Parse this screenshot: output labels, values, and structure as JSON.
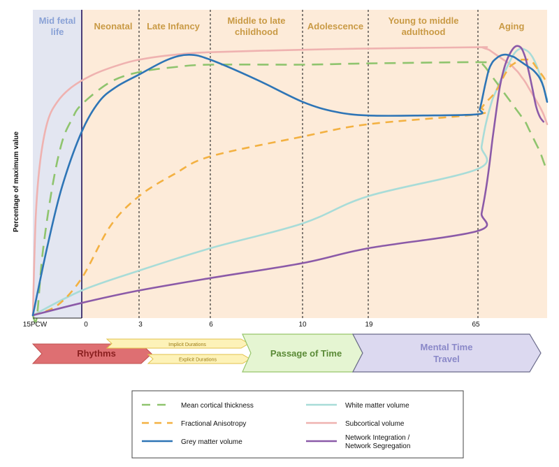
{
  "chart_data": {
    "type": "line",
    "title": "",
    "ylabel": "Percentage of maximum value",
    "xlabel": "",
    "x_ticks": [
      "15PCW",
      "0",
      "3",
      "6",
      "10",
      "19",
      "65"
    ],
    "stages": [
      "Mid fetal life",
      "Neonatal",
      "Late Infancy",
      "Middle to late childhood",
      "Adolescence",
      "Young to middle adulthood",
      "Aging"
    ],
    "stage_labels": {
      "mid_fetal": [
        "Mid fetal",
        "life"
      ],
      "neonatal": [
        "Neonatal"
      ],
      "late_infancy": [
        "Late Infancy"
      ],
      "childhood": [
        "Middle to late",
        "childhood"
      ],
      "adolescence": [
        "Adolescence"
      ],
      "adulthood": [
        "Young to middle",
        "adulthood"
      ],
      "aging": [
        "Aging"
      ]
    },
    "grid": false,
    "legend_position": "bottom",
    "series": [
      {
        "key": "thickness",
        "name": "Mean cortical thickness",
        "color": "#8fc46e",
        "dash": "long-dash",
        "x": [
          0,
          0.08,
          0.2,
          0.4,
          0.6,
          0.8,
          1.0,
          1.5,
          2.0,
          2.5,
          3.0,
          4.0,
          5.0,
          6.0,
          7.0,
          8.0,
          9.0,
          10.0,
          11.0,
          12.0,
          13.0,
          14.0,
          15.0,
          16.0,
          17.0,
          18.0,
          19.0,
          20.0,
          21.0,
          22.0,
          23.0,
          24.0,
          25.0
        ],
        "y": [
          0,
          -1,
          25,
          52,
          70,
          79,
          85,
          94,
          98,
          100,
          101,
          101,
          101.5,
          102,
          101.5,
          100,
          98,
          96,
          94,
          92,
          90,
          88,
          86,
          84,
          82,
          80,
          78,
          75,
          72,
          69,
          66,
          62,
          58
        ]
      },
      {
        "key": "fa",
        "name": "Fractional Anisotropy",
        "color": "#f3b142",
        "dash": "dash",
        "x": [
          0,
          0.5,
          1.0,
          1.5,
          2.0,
          2.5,
          3.0,
          4.0,
          5.0,
          6.0,
          7.0,
          8.0,
          9.0,
          10.0,
          11.0,
          12.0,
          13.0,
          14.0,
          15.0,
          16.0,
          17.0,
          18.0,
          19.0,
          20.0,
          21.0,
          22.0,
          23.0,
          24.0,
          25.0
        ],
        "y": [
          0,
          4,
          15,
          36,
          48,
          57,
          64,
          72,
          77,
          81,
          83.5,
          85.5,
          87,
          88.5,
          90.5,
          93,
          96,
          98.5,
          100.5,
          101.5,
          102.5,
          103,
          103,
          103,
          102,
          100,
          98,
          96,
          93.5
        ]
      },
      {
        "key": "grey",
        "name": "Grey matter volume",
        "color": "#2e75b6",
        "dash": "solid",
        "x": [
          0,
          0.3,
          0.6,
          1.0,
          1.3,
          1.6,
          2.0,
          2.4,
          2.7,
          3.0,
          3.5,
          4.0,
          4.5,
          5.0,
          5.5,
          6.0,
          6.5,
          7.0,
          8.0,
          9.0,
          10.0,
          11.0,
          12.0,
          13.0,
          14.0,
          15.0,
          16.0,
          17.0,
          18.0,
          19.0,
          20.0,
          21.0,
          22.0,
          23.0,
          24.0,
          25.0
        ],
        "y": [
          0,
          28,
          52,
          74,
          86,
          92,
          97,
          103,
          105,
          103,
          95,
          86,
          82,
          80.5,
          80.5,
          81,
          83,
          86,
          93,
          99,
          102,
          103.5,
          104.5,
          105,
          105,
          104.5,
          104,
          103,
          102,
          101,
          100,
          99,
          97.5,
          95.5,
          92,
          86
        ]
      },
      {
        "key": "white",
        "name": "White matter volume",
        "color": "#a8dcd8",
        "dash": "solid",
        "x": [
          0,
          1.0,
          2.0,
          3.0,
          4.0,
          5.0,
          6.0,
          7.0,
          8.0,
          9.0,
          10.0,
          11.0,
          12.0,
          13.0,
          14.0,
          15.0,
          16.0,
          17.0,
          18.0,
          19.0,
          20.0,
          21.0,
          22.0,
          23.0,
          24.0,
          25.0
        ],
        "y": [
          0,
          10,
          18,
          27,
          37,
          48,
          59,
          68,
          76,
          82,
          87,
          90.5,
          94,
          97,
          100,
          103,
          105.5,
          107,
          107.5,
          107,
          106,
          104,
          101,
          97,
          92,
          87
        ]
      },
      {
        "key": "subcortical",
        "name": "Subcortical volume",
        "color": "#efb2b0",
        "dash": "solid",
        "x": [
          0,
          0.06,
          0.15,
          0.3,
          0.5,
          0.8,
          1.2,
          1.6,
          2.0,
          2.5,
          3.0,
          4.0,
          5.0,
          6.0,
          7.0,
          8.0,
          9.0,
          10.0,
          11.0,
          12.0,
          13.0,
          14.0,
          15.0,
          16.0,
          17.0,
          18.0,
          19.0,
          20.0,
          21.0,
          22.0,
          23.0,
          24.0,
          25.0
        ],
        "y": [
          0,
          40,
          62,
          78,
          86,
          92,
          97,
          100.5,
          103,
          105,
          106,
          107,
          107.5,
          108,
          108,
          107.5,
          107,
          106,
          105,
          104,
          103,
          102,
          101,
          99.5,
          98,
          96,
          94,
          91.5,
          89,
          86.5,
          84,
          81,
          77
        ]
      },
      {
        "key": "network",
        "name": "Network Integration / Network Segregation",
        "color": "#8b5aa8",
        "dash": "solid",
        "x": [
          0,
          1.0,
          2.0,
          3.0,
          4.0,
          5.0,
          6.0,
          7.0,
          8.0,
          9.0,
          10.0,
          11.0,
          12.0,
          13.0,
          14.0,
          15.0,
          16.0,
          17.0,
          18.0,
          19.0,
          19.5,
          20.0,
          21.0,
          22.0,
          23.0,
          24.0
        ],
        "y": [
          0,
          5,
          10,
          15,
          21,
          27,
          34,
          41,
          49,
          59,
          71,
          82,
          92,
          98.5,
          103,
          106,
          108,
          108.5,
          107.5,
          104,
          101,
          98,
          91,
          84,
          80,
          78
        ]
      }
    ],
    "timeline": {
      "rhythms": "Rhythms",
      "implicit": "Implicit Durations",
      "explicit": "Explicit Durations",
      "passage": "Passage of Time",
      "mental": [
        "Mental Time",
        "Travel"
      ]
    }
  }
}
